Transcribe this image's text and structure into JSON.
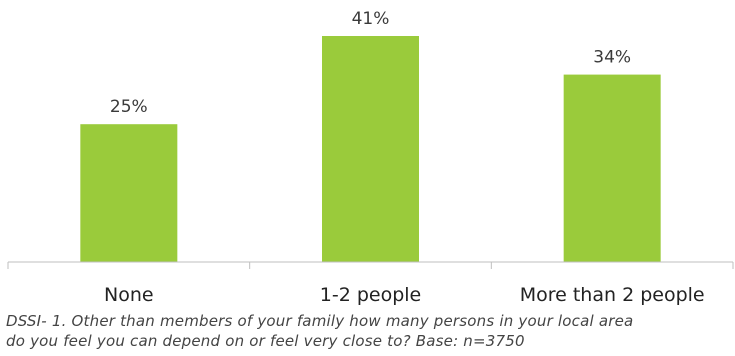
{
  "chart_data": {
    "type": "bar",
    "categories": [
      "None",
      "1-2 people",
      "More than 2 people"
    ],
    "values": [
      25,
      41,
      34
    ],
    "data_labels": [
      "25%",
      "41%",
      "34%"
    ],
    "unit": "%",
    "ylim": [
      0,
      45
    ],
    "grid": false,
    "legend": "none",
    "bar_color": "#9acb3b",
    "axis_color": "#bfbfbf"
  },
  "footnote": {
    "line1": "DSSI- 1. Other than members of your family how many persons in your local area",
    "line2": "do you feel you can depend on or feel very close to?  Base: n=3750"
  }
}
